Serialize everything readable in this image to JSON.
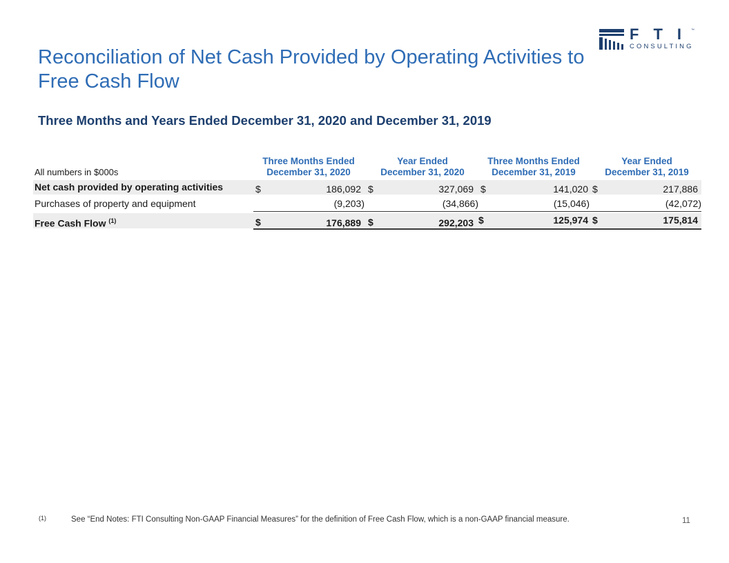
{
  "logo": {
    "letters": "FTI",
    "trademark": "™",
    "subtext": "CONSULTING",
    "color": "#1d3f6e"
  },
  "title": "Reconciliation of Net Cash Provided by Operating Activities to Free Cash Flow",
  "subtitle": "Three Months and Years Ended December 31, 2020 and December 31, 2019",
  "table": {
    "units_label": "All numbers in $000s",
    "columns": [
      {
        "line1": "Three Months Ended",
        "line2": "December 31, 2020"
      },
      {
        "line1": "Year Ended",
        "line2": "December 31, 2020"
      },
      {
        "line1": "Three Months Ended",
        "line2": "December 31, 2019"
      },
      {
        "line1": "Year Ended",
        "line2": "December 31, 2019"
      }
    ],
    "rows": [
      {
        "label": "Net cash provided by operating activities",
        "values": [
          "186,092",
          "327,069",
          "141,020",
          "217,886"
        ],
        "currency_symbol": "$"
      },
      {
        "label": "Purchases of property and equipment",
        "values": [
          "(9,203)",
          "(34,866)",
          "(15,046)",
          "(42,072)"
        ]
      },
      {
        "label": "Free Cash Flow",
        "label_superscript": "(1)",
        "values": [
          "176,889",
          "292,203",
          "125,974",
          "175,814"
        ],
        "currency_symbol": "$"
      }
    ]
  },
  "footnote": {
    "marker": "(1)",
    "text": "See “End Notes: FTI Consulting Non-GAAP Financial Measures” for the definition of Free Cash Flow, which is a non-GAAP financial measure."
  },
  "page_number": "11",
  "colors": {
    "title": "#2e6cb5",
    "subtitle": "#1d3f6e",
    "header": "#2e6cb5",
    "row_shading": "#ededed"
  }
}
